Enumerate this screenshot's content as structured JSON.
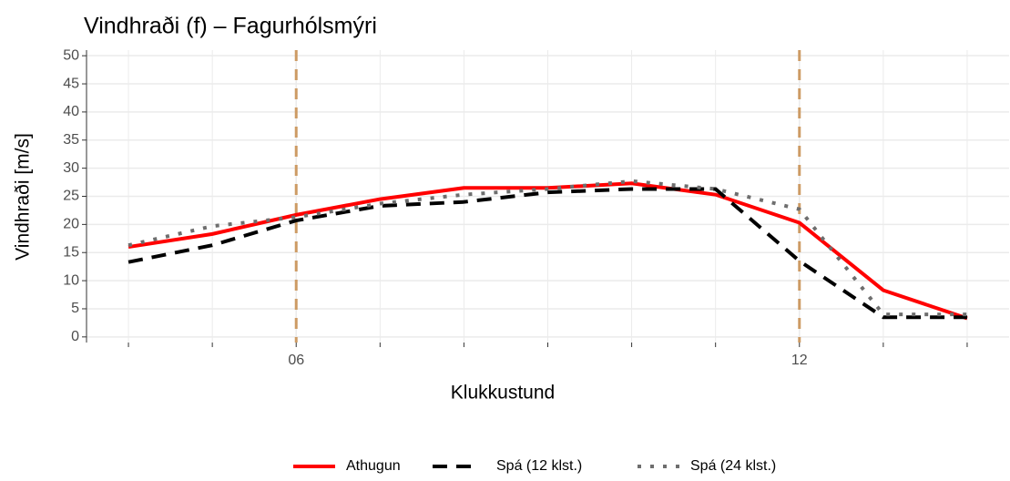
{
  "chart_data": {
    "type": "line",
    "title": "Vindhraði (f) – Fagurhólsmýri",
    "x_label": "Klukkustund",
    "y_label": "Vindhraði [m/s]",
    "x": [
      4,
      5,
      6,
      7,
      8,
      9,
      10,
      11,
      12,
      13,
      14
    ],
    "series": [
      {
        "name": "Athugun",
        "color": "#ff0000",
        "dash": "solid",
        "values": [
          16,
          18.3,
          21.7,
          24.5,
          26.5,
          26.5,
          27.3,
          25.3,
          20.3,
          8.3,
          3.3
        ]
      },
      {
        "name": "Spá (12 klst.)",
        "color": "#000000",
        "dash": "dashed",
        "values": [
          13.3,
          16.3,
          20.7,
          23.3,
          24,
          25.7,
          26.3,
          26.3,
          13.5,
          3.5,
          3.5
        ]
      },
      {
        "name": "Spá (24 klst.)",
        "color": "#6e6e6e",
        "dash": "dotted",
        "values": [
          16.3,
          19.7,
          21.3,
          23.7,
          25.3,
          26.3,
          27.7,
          26.3,
          22.7,
          4,
          4
        ]
      }
    ],
    "vlines": [
      6,
      12
    ],
    "vline_color": "#cd9b64",
    "xlim": [
      3.5,
      14.5
    ],
    "xticks": [
      {
        "value": 6,
        "label": "06"
      },
      {
        "value": 12,
        "label": "12"
      }
    ],
    "ylim": [
      -1,
      51
    ],
    "yticks": [
      0,
      5,
      10,
      15,
      20,
      25,
      30,
      35,
      40,
      45,
      50
    ],
    "grid": true,
    "legend": "bottom"
  }
}
